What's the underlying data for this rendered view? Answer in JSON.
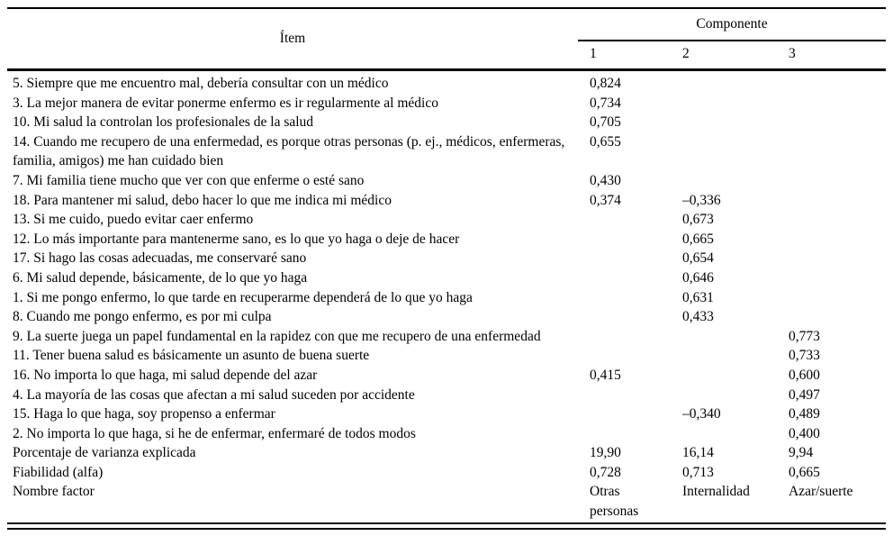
{
  "table": {
    "header": {
      "item_label": "Ítem",
      "component_label": "Componente",
      "component_columns": [
        "1",
        "2",
        "3"
      ]
    },
    "rows": [
      {
        "item": "5. Siempre que me encuentro mal, debería consultar con un médico",
        "c1": "0,824",
        "c2": "",
        "c3": ""
      },
      {
        "item": "3. La mejor manera de evitar ponerme enfermo es ir regularmente al médico",
        "c1": "0,734",
        "c2": "",
        "c3": ""
      },
      {
        "item": "10. Mi salud la controlan los profesionales de la salud",
        "c1": "0,705",
        "c2": "",
        "c3": ""
      },
      {
        "item": "14. Cuando me recupero de una enfermedad, es porque otras personas (p. ej., médicos, enfermeras, familia, amigos) me han cuidado bien",
        "c1": "0,655",
        "c2": "",
        "c3": ""
      },
      {
        "item": "7. Mi familia tiene mucho que ver con que enferme o esté sano",
        "c1": "0,430",
        "c2": "",
        "c3": ""
      },
      {
        "item": "18. Para mantener mi salud, debo hacer lo que me indica mi médico",
        "c1": "0,374",
        "c2": "–0,336",
        "c3": ""
      },
      {
        "item": "13. Si me cuido, puedo evitar caer enfermo",
        "c1": "",
        "c2": "0,673",
        "c3": ""
      },
      {
        "item": "12. Lo más importante para mantenerme sano, es lo que yo haga o deje de hacer",
        "c1": "",
        "c2": "0,665",
        "c3": ""
      },
      {
        "item": "17. Si hago las cosas adecuadas, me conservaré sano",
        "c1": "",
        "c2": "0,654",
        "c3": ""
      },
      {
        "item": "6. Mi salud depende, básicamente, de lo que yo haga",
        "c1": "",
        "c2": "0,646",
        "c3": ""
      },
      {
        "item": "1. Si me pongo enfermo, lo que tarde en recuperarme dependerá de lo que yo haga",
        "c1": "",
        "c2": "0,631",
        "c3": ""
      },
      {
        "item": "8. Cuando me pongo enfermo, es por mi culpa",
        "c1": "",
        "c2": "0,433",
        "c3": ""
      },
      {
        "item": "9. La suerte juega un papel fundamental en la rapidez con que me recupero de una enfermedad",
        "c1": "",
        "c2": "",
        "c3": "0,773"
      },
      {
        "item": "11. Tener buena salud es básicamente un asunto de buena suerte",
        "c1": "",
        "c2": "",
        "c3": "0,733"
      },
      {
        "item": "16. No importa lo que haga, mi salud depende del azar",
        "c1": "0,415",
        "c2": "",
        "c3": "0,600"
      },
      {
        "item": "4. La mayoría de las cosas que afectan a mi salud suceden por accidente",
        "c1": "",
        "c2": "",
        "c3": "0,497"
      },
      {
        "item": "15. Haga lo que haga, soy propenso a enfermar",
        "c1": "",
        "c2": "–0,340",
        "c3": "0,489"
      },
      {
        "item": "2. No importa lo que haga, si he de enfermar, enfermaré de todos modos",
        "c1": "",
        "c2": "",
        "c3": "0,400"
      },
      {
        "item": "Porcentaje de varianza explicada",
        "c1": "19,90",
        "c2": "16,14",
        "c3": "9,94"
      },
      {
        "item": "Fiabilidad (alfa)",
        "c1": "0,728",
        "c2": "0,713",
        "c3": "0,665"
      },
      {
        "item": "Nombre factor",
        "c1": "Otras personas",
        "c2": "Internalidad",
        "c3": "Azar/suerte"
      }
    ]
  }
}
